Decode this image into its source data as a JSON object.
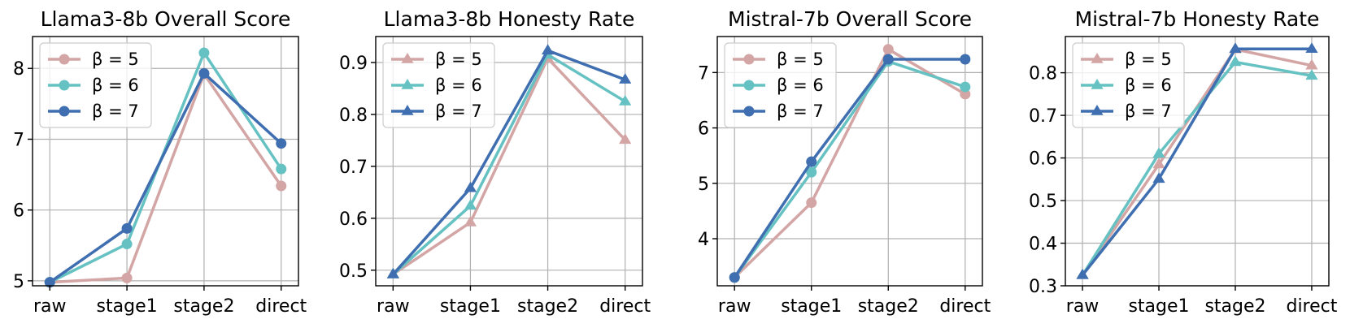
{
  "colors": {
    "beta5": "#d4a5a5",
    "beta6": "#66c2c2",
    "beta7": "#3f6fb0"
  },
  "chart_data": [
    {
      "type": "line",
      "title": "Llama3-8b Overall Score",
      "marker": "circle",
      "categories": [
        "raw",
        "stage1",
        "stage2",
        "direct"
      ],
      "ylim": [
        4.93,
        8.45
      ],
      "yticks": [
        5,
        6,
        7,
        8
      ],
      "ytick_labels": [
        "5",
        "6",
        "7",
        "8"
      ],
      "legend": "upper-left",
      "grid": true,
      "series": [
        {
          "name": "β = 5",
          "color_key": "beta5",
          "values": [
            4.98,
            5.04,
            7.92,
            6.34
          ]
        },
        {
          "name": "β = 6",
          "color_key": "beta6",
          "values": [
            4.98,
            5.52,
            8.22,
            6.58
          ]
        },
        {
          "name": "β = 7",
          "color_key": "beta7",
          "values": [
            4.98,
            5.74,
            7.93,
            6.94
          ]
        }
      ]
    },
    {
      "type": "line",
      "title": "Llama3-8b Honesty Rate",
      "marker": "triangle",
      "categories": [
        "raw",
        "stage1",
        "stage2",
        "direct"
      ],
      "ylim": [
        0.47,
        0.95
      ],
      "yticks": [
        0.5,
        0.6,
        0.7,
        0.8,
        0.9
      ],
      "ytick_labels": [
        "0.5",
        "0.6",
        "0.7",
        "0.8",
        "0.9"
      ],
      "legend": "upper-left",
      "grid": true,
      "series": [
        {
          "name": "β = 5",
          "color_key": "beta5",
          "values": [
            0.492,
            0.592,
            0.908,
            0.751
          ]
        },
        {
          "name": "β = 6",
          "color_key": "beta6",
          "values": [
            0.492,
            0.624,
            0.915,
            0.825
          ]
        },
        {
          "name": "β = 7",
          "color_key": "beta7",
          "values": [
            0.492,
            0.658,
            0.923,
            0.867
          ]
        }
      ]
    },
    {
      "type": "line",
      "title": "Mistral-7b Overall Score",
      "marker": "circle",
      "categories": [
        "raw",
        "stage1",
        "stage2",
        "direct"
      ],
      "ylim": [
        3.15,
        7.65
      ],
      "yticks": [
        4,
        5,
        6,
        7
      ],
      "ytick_labels": [
        "4",
        "5",
        "6",
        "7"
      ],
      "legend": "upper-left",
      "grid": true,
      "series": [
        {
          "name": "β = 5",
          "color_key": "beta5",
          "values": [
            3.3,
            4.65,
            7.42,
            6.61
          ]
        },
        {
          "name": "β = 6",
          "color_key": "beta6",
          "values": [
            3.3,
            5.2,
            7.2,
            6.74
          ]
        },
        {
          "name": "β = 7",
          "color_key": "beta7",
          "values": [
            3.3,
            5.39,
            7.24,
            7.24
          ]
        }
      ]
    },
    {
      "type": "line",
      "title": "Mistral-7b Honesty Rate",
      "marker": "triangle",
      "categories": [
        "raw",
        "stage1",
        "stage2",
        "direct"
      ],
      "ylim": [
        0.3,
        0.885
      ],
      "yticks": [
        0.3,
        0.4,
        0.5,
        0.6,
        0.7,
        0.8
      ],
      "ytick_labels": [
        "0.3",
        "0.4",
        "0.5",
        "0.6",
        "0.7",
        "0.8"
      ],
      "legend": "upper-left",
      "grid": true,
      "series": [
        {
          "name": "β = 5",
          "color_key": "beta5",
          "values": [
            0.325,
            0.585,
            0.855,
            0.817
          ]
        },
        {
          "name": "β = 6",
          "color_key": "beta6",
          "values": [
            0.325,
            0.61,
            0.825,
            0.793
          ]
        },
        {
          "name": "β = 7",
          "color_key": "beta7",
          "values": [
            0.325,
            0.551,
            0.856,
            0.856
          ]
        }
      ]
    }
  ]
}
